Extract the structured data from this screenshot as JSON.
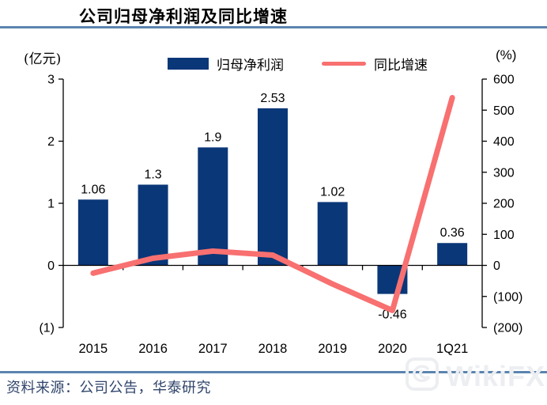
{
  "header": {
    "title": "公司归母净利润及同比增速"
  },
  "axes": {
    "left_unit": "(亿元)",
    "right_unit": "(%)"
  },
  "chart_data": {
    "type": "bar",
    "subtype": "bar+line dual-axis",
    "title": "公司归母净利润及同比增速",
    "categories": [
      "2015",
      "2016",
      "2017",
      "2018",
      "2019",
      "2020",
      "1Q21"
    ],
    "series": [
      {
        "name": "归母净利润",
        "type": "bar",
        "axis": "left",
        "values": [
          1.06,
          1.3,
          1.9,
          2.53,
          1.02,
          -0.46,
          0.36
        ],
        "labels": [
          "1.06",
          "1.3",
          "1.9",
          "2.53",
          "1.02",
          "-0.46",
          "0.36"
        ]
      },
      {
        "name": "同比增速",
        "type": "line",
        "axis": "right",
        "values": [
          -25,
          23,
          46,
          33,
          -60,
          -145,
          540
        ]
      }
    ],
    "left_axis": {
      "unit": "(亿元)",
      "min": -1,
      "max": 3,
      "ticks": [
        {
          "value": 3,
          "label": "3"
        },
        {
          "value": 2,
          "label": "2"
        },
        {
          "value": 1,
          "label": "1"
        },
        {
          "value": 0,
          "label": "0"
        },
        {
          "value": -1,
          "label": "(1)"
        }
      ]
    },
    "right_axis": {
      "unit": "(%)",
      "min": -200,
      "max": 600,
      "ticks": [
        {
          "value": 600,
          "label": "600"
        },
        {
          "value": 500,
          "label": "500"
        },
        {
          "value": 400,
          "label": "400"
        },
        {
          "value": 300,
          "label": "300"
        },
        {
          "value": 200,
          "label": "200"
        },
        {
          "value": 100,
          "label": "100"
        },
        {
          "value": 0,
          "label": "0"
        },
        {
          "value": -100,
          "label": "(100)"
        },
        {
          "value": -200,
          "label": "(200)"
        }
      ]
    },
    "grid": false,
    "legend_position": "top"
  },
  "footer": {
    "source": "资料来源：公司公告，华泰研究"
  },
  "watermark": {
    "text": "WikiFX"
  },
  "colors": {
    "bar": "#0a3778",
    "line": "#f87070",
    "rule": "#5b84af",
    "source_text": "#30456b",
    "axis": "#000000",
    "watermark": "#eceef1"
  }
}
